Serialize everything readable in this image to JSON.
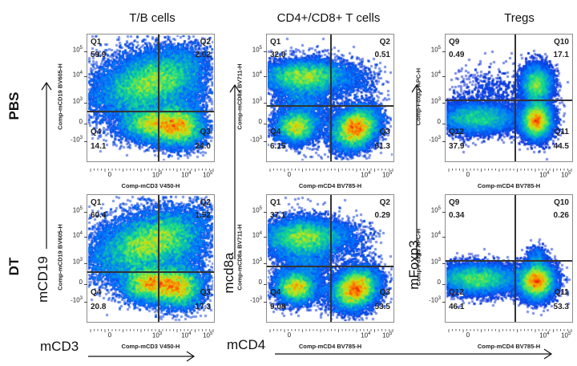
{
  "chart_data": {
    "type": "scatter",
    "subtype": "flow-cytometry-pseudocolor-quadrant-plot",
    "columns": [
      "T/B cells",
      "CD4+/CD8+ T cells",
      "Tregs"
    ],
    "rows": [
      "PBS",
      "DT"
    ],
    "marker_labels": {
      "x": [
        "mCD3",
        "mCD4"
      ],
      "y": [
        "mCD19",
        "mcd8a",
        "mFoxp3"
      ]
    },
    "panels": [
      {
        "row": "PBS",
        "column": "T/B cells",
        "xlabel": "Comp-mCD3 V450-H",
        "ylabel": "Comp-mCD19 BV605-H",
        "xticks": [
          "0",
          "10^3",
          "10^4",
          "10^5"
        ],
        "yticks": [
          "10^5",
          "10^4",
          "10^3",
          "0",
          "-10^3"
        ],
        "quadrants": [
          {
            "name": "Q1",
            "value": "59.9"
          },
          {
            "name": "Q2",
            "value": "2.02"
          },
          {
            "name": "Q3",
            "value": "24.0"
          },
          {
            "name": "Q4",
            "value": "14.1"
          }
        ]
      },
      {
        "row": "PBS",
        "column": "CD4+/CD8+ T cells",
        "xlabel": "Comp-mCD4 BV785-H",
        "ylabel": "Comp-mCD8a BV711-H",
        "xticks": [
          "0",
          "10^4",
          "10^5"
        ],
        "yticks": [
          "10^5",
          "10^4",
          "10^3",
          "0",
          "-10^3"
        ],
        "quadrants": [
          {
            "name": "Q1",
            "value": "32.0"
          },
          {
            "name": "Q2",
            "value": "0.51"
          },
          {
            "name": "Q3",
            "value": "61.3"
          },
          {
            "name": "Q4",
            "value": "6.15"
          }
        ]
      },
      {
        "row": "PBS",
        "column": "Tregs",
        "xlabel": "Comp-mCD4 BV785-H",
        "ylabel": "Comp-Foxp3 APC-H",
        "xticks": [
          "0",
          "10^4",
          "10^5"
        ],
        "yticks": [
          "10^5",
          "10^4",
          "10^3",
          "0",
          "-10^3"
        ],
        "quadrants": [
          {
            "name": "Q9",
            "value": "0.49"
          },
          {
            "name": "Q10",
            "value": "17.1"
          },
          {
            "name": "Q11",
            "value": "44.5"
          },
          {
            "name": "Q12",
            "value": "37.9"
          }
        ]
      },
      {
        "row": "DT",
        "column": "T/B cells",
        "xlabel": "Comp-mCD3 V450-H",
        "ylabel": "Comp-mCD19 BV605-H",
        "xticks": [
          "0",
          "10^3",
          "10^4",
          "10^5"
        ],
        "yticks": [
          "10^5",
          "10^4",
          "10^3",
          "0",
          "-10^3"
        ],
        "quadrants": [
          {
            "name": "Q1",
            "value": "60.4"
          },
          {
            "name": "Q2",
            "value": "1.52"
          },
          {
            "name": "Q3",
            "value": "17.3"
          },
          {
            "name": "Q4",
            "value": "20.8"
          }
        ]
      },
      {
        "row": "DT",
        "column": "CD4+/CD8+ T cells",
        "xlabel": "Comp-mCD4 BV785-H",
        "ylabel": "Comp-mCD8a BV711-H",
        "xticks": [
          "0",
          "10^4",
          "10^5"
        ],
        "yticks": [
          "10^5",
          "10^4",
          "10^3",
          "0",
          "-10^3"
        ],
        "quadrants": [
          {
            "name": "Q1",
            "value": "37.1"
          },
          {
            "name": "Q2",
            "value": "0.29"
          },
          {
            "name": "Q3",
            "value": "53.5"
          },
          {
            "name": "Q4",
            "value": "9.08"
          }
        ]
      },
      {
        "row": "DT",
        "column": "Tregs",
        "xlabel": "Comp-mCD4 BV785-H",
        "ylabel": "Comp-Foxp3 APC-H",
        "xticks": [
          "0",
          "10^4",
          "10^5"
        ],
        "yticks": [
          "10^5",
          "10^4",
          "10^3",
          "0",
          "-10^3"
        ],
        "quadrants": [
          {
            "name": "Q9",
            "value": "0.34"
          },
          {
            "name": "Q10",
            "value": "0.26"
          },
          {
            "name": "Q11",
            "value": "53.3"
          },
          {
            "name": "Q12",
            "value": "46.1"
          }
        ]
      }
    ]
  },
  "colors": {
    "density_low": "#1010d0",
    "density_mid": "#10d080",
    "density_high": "#ff2000",
    "quadrant_line": "#333333",
    "frame": "#8c8c8c"
  }
}
